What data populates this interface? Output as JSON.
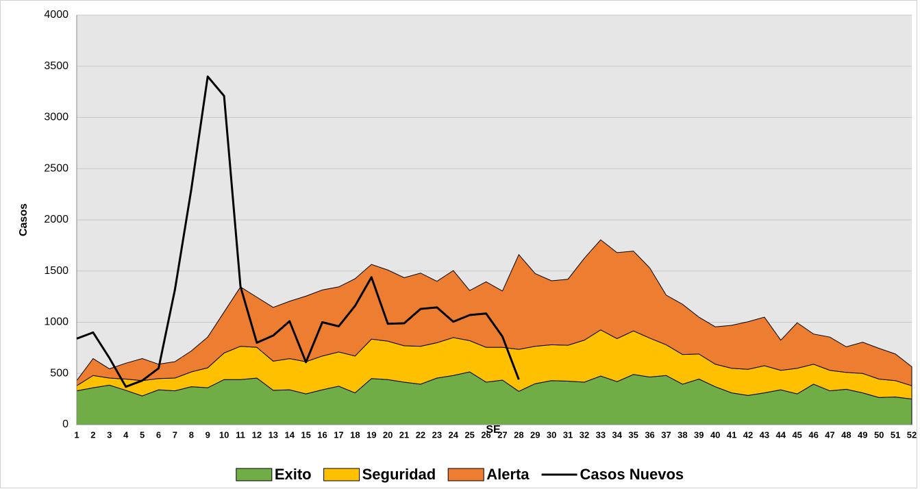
{
  "chart_data": {
    "type": "stacked-area-line",
    "x_label": "SE",
    "y_label": "Casos",
    "categories": [
      1,
      2,
      3,
      4,
      5,
      6,
      7,
      8,
      9,
      10,
      11,
      12,
      13,
      14,
      15,
      16,
      17,
      18,
      19,
      20,
      21,
      22,
      23,
      24,
      25,
      26,
      27,
      28,
      29,
      30,
      31,
      32,
      33,
      34,
      35,
      36,
      37,
      38,
      39,
      40,
      41,
      42,
      43,
      44,
      45,
      46,
      47,
      48,
      49,
      50,
      51,
      52
    ],
    "ylim": [
      0,
      4000
    ],
    "yticks": [
      0,
      500,
      1000,
      1500,
      2000,
      2500,
      3000,
      3500,
      4000
    ],
    "grid": true,
    "legend": "bottom",
    "series": [
      {
        "name": "Exito",
        "color": "#70ad47",
        "kind": "area",
        "values": [
          330,
          360,
          385,
          335,
          280,
          340,
          330,
          370,
          360,
          440,
          440,
          455,
          335,
          340,
          300,
          340,
          375,
          310,
          450,
          440,
          415,
          395,
          455,
          480,
          515,
          415,
          435,
          325,
          400,
          430,
          425,
          415,
          475,
          420,
          490,
          465,
          480,
          395,
          445,
          370,
          310,
          285,
          310,
          340,
          300,
          395,
          330,
          345,
          310,
          265,
          270,
          250
        ]
      },
      {
        "name": "Seguridad",
        "color": "#ffc000",
        "kind": "area",
        "values": [
          50,
          120,
          70,
          110,
          150,
          110,
          125,
          145,
          195,
          260,
          325,
          300,
          285,
          305,
          315,
          330,
          335,
          360,
          385,
          375,
          355,
          370,
          345,
          370,
          305,
          340,
          320,
          410,
          365,
          350,
          350,
          410,
          450,
          420,
          425,
          380,
          300,
          290,
          245,
          220,
          240,
          255,
          265,
          190,
          250,
          195,
          200,
          165,
          190,
          180,
          160,
          130
        ]
      },
      {
        "name": "Alerta",
        "color": "#ed7d31",
        "kind": "area",
        "values": [
          50,
          165,
          90,
          155,
          215,
          140,
          160,
          205,
          300,
          400,
          580,
          490,
          525,
          560,
          640,
          645,
          635,
          755,
          730,
          695,
          665,
          715,
          600,
          655,
          490,
          640,
          550,
          925,
          710,
          625,
          645,
          800,
          880,
          840,
          780,
          685,
          485,
          490,
          360,
          365,
          420,
          465,
          475,
          295,
          445,
          295,
          325,
          250,
          305,
          300,
          260,
          185
        ]
      },
      {
        "name": "Casos Nuevos",
        "color": "#000000",
        "kind": "line",
        "values": [
          840,
          900,
          650,
          370,
          430,
          550,
          1320,
          2300,
          3400,
          3210,
          1350,
          800,
          870,
          1010,
          610,
          1000,
          960,
          1160,
          1440,
          985,
          990,
          1130,
          1145,
          1005,
          1070,
          1085,
          860,
          440,
          null,
          null,
          null,
          null,
          null,
          null,
          null,
          null,
          null,
          null,
          null,
          null,
          null,
          null,
          null,
          null,
          null,
          null,
          null,
          null,
          null,
          null,
          null,
          null
        ]
      }
    ]
  }
}
